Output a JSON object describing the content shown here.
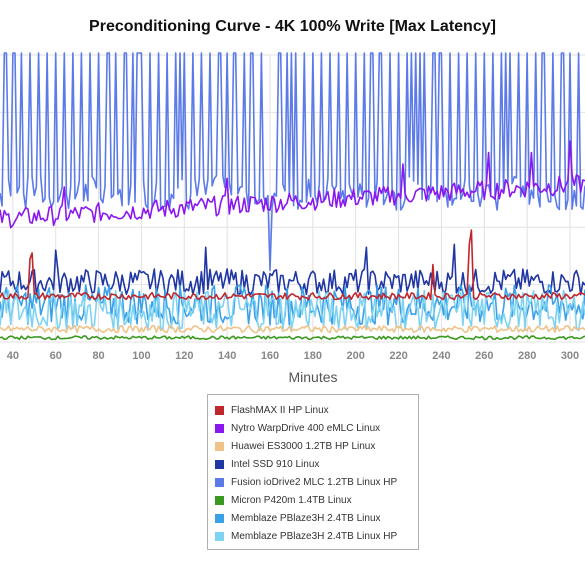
{
  "chart_data": {
    "type": "line",
    "title": "Preconditioning Curve - 4K 100% Write [Max Latency]",
    "xlabel": "Minutes",
    "ylabel": "",
    "x_ticks": [
      40,
      60,
      80,
      100,
      120,
      140,
      160,
      180,
      200,
      220,
      240,
      260,
      280,
      300
    ],
    "xlim": [
      34,
      307
    ],
    "ylim": [
      0,
      100
    ],
    "grid": true,
    "legend_position": "bottom",
    "series": [
      {
        "name": "FlashMAX II HP Linux",
        "color": "#c0272d",
        "base": 16,
        "noise": 1.2,
        "spikes": [
          [
            48,
            29
          ],
          [
            49,
            31
          ],
          [
            236,
            27
          ],
          [
            253,
            34
          ],
          [
            254,
            39
          ]
        ]
      },
      {
        "name": "Nytro WarpDrive 400 eMLC Linux",
        "color": "#8a17f0",
        "base": 43,
        "end": 55,
        "noise": 3.5,
        "spikes": [
          [
            64,
            54
          ],
          [
            140,
            57
          ],
          [
            222,
            62
          ],
          [
            262,
            66
          ],
          [
            282,
            66
          ],
          [
            300,
            70
          ]
        ]
      },
      {
        "name": "Huawei ES3000 1.2TB HP Linux",
        "color": "#efc38a",
        "base": 4.5,
        "noise": 1.2,
        "spikes": []
      },
      {
        "name": "Intel SSD 910 Linux",
        "color": "#1f36a3",
        "base": 21,
        "noise": 4.5,
        "spikes": [
          [
            60,
            32
          ],
          [
            130,
            33
          ],
          [
            205,
            33
          ],
          [
            246,
            34
          ]
        ]
      },
      {
        "name": "Fusion ioDrive2 MLC 1.2TB Linux HP",
        "color": "#5c7be8",
        "base": 52,
        "noise": 6,
        "high": 100,
        "spike_every": 4,
        "spikes": [
          [
            160,
            25
          ]
        ]
      },
      {
        "name": "Micron P420m 1.4TB Linux",
        "color": "#3a9a1f",
        "base": 1.5,
        "noise": 0.6,
        "spikes": []
      },
      {
        "name": "Memblaze PBlaze3H 2.4TB Linux",
        "color": "#3aa0e8",
        "base": 13,
        "noise": 7,
        "spikes": []
      },
      {
        "name": "Memblaze PBlaze3H 2.4TB Linux HP",
        "color": "#7fd3f2",
        "base": 11,
        "noise": 7,
        "spikes": []
      }
    ]
  }
}
